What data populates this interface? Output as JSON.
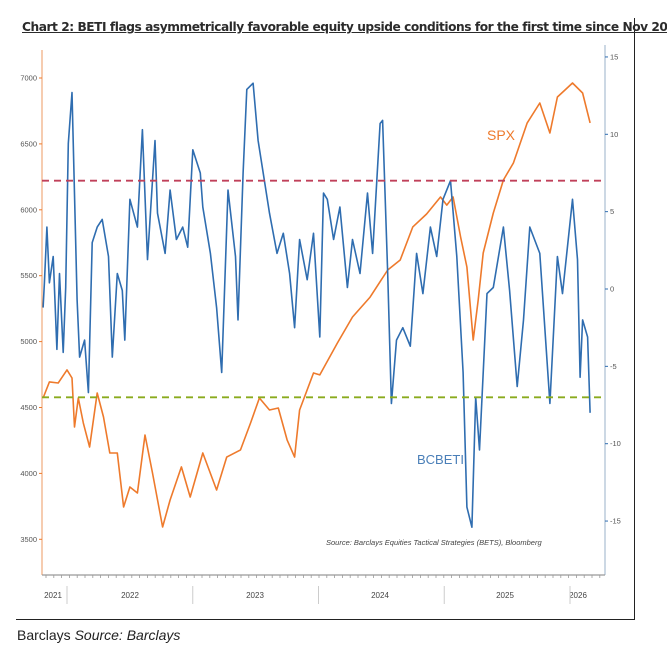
{
  "chart_data": {
    "type": "line",
    "title": "Chart 2: BETI flags asymmetrically favorable equity upside conditions for the first time since Nov 20",
    "source_note": "Source: Barclays Equities Tactical Strategies (BETS), Bloomberg",
    "x_tick_labels": [
      "2021",
      "2022",
      "2023",
      "2024",
      "2025",
      "2026"
    ],
    "xlim": [
      2021.8,
      2026.2
    ],
    "left_axis": {
      "ylim": [
        3300,
        7250
      ],
      "ticks": [
        3500,
        4000,
        4500,
        5000,
        5500,
        6000,
        6500,
        7000
      ],
      "series": "SPX"
    },
    "right_axis": {
      "ylim": [
        -18,
        17
      ],
      "ticks": [
        -15,
        -10,
        -5,
        0,
        5,
        10,
        15
      ],
      "series": "BCBETI"
    },
    "thresholds": [
      {
        "axis": "right",
        "value": 7,
        "color": "#c0405a",
        "style": "dashed"
      },
      {
        "axis": "right",
        "value": -7,
        "color": "#8aab1e",
        "style": "dashed"
      }
    ],
    "series": [
      {
        "name": "SPX",
        "label": "SPX",
        "axis": "left",
        "color": "#ee7a2c",
        "x": [
          2021.81,
          2021.86,
          2021.93,
          2022.0,
          2022.04,
          2022.06,
          2022.09,
          2022.13,
          2022.18,
          2022.24,
          2022.29,
          2022.34,
          2022.4,
          2022.45,
          2022.5,
          2022.56,
          2022.62,
          2022.68,
          2022.76,
          2022.82,
          2022.91,
          2022.98,
          2023.08,
          2023.19,
          2023.27,
          2023.38,
          2023.46,
          2023.53,
          2023.61,
          2023.68,
          2023.75,
          2023.81,
          2023.85,
          2023.96,
          2024.01,
          2024.15,
          2024.27,
          2024.41,
          2024.55,
          2024.65,
          2024.75,
          2024.86,
          2024.97,
          2025.02,
          2025.07,
          2025.13,
          2025.18,
          2025.23,
          2025.27,
          2025.31,
          2025.39,
          2025.47,
          2025.55,
          2025.66,
          2025.76,
          2025.84,
          2025.9,
          2025.96,
          2026.02,
          2026.1,
          2026.16
        ],
        "values": [
          4572,
          4694,
          4686,
          4785,
          4724,
          4352,
          4572,
          4383,
          4200,
          4610,
          4428,
          4155,
          4155,
          3745,
          3897,
          3851,
          4291,
          4003,
          3593,
          3798,
          4049,
          3821,
          4155,
          3874,
          4124,
          4178,
          4383,
          4572,
          4481,
          4496,
          4254,
          4124,
          4481,
          4762,
          4747,
          4989,
          5187,
          5338,
          5543,
          5619,
          5870,
          5968,
          6097,
          6036,
          6097,
          5794,
          5566,
          5012,
          5316,
          5672,
          5976,
          6226,
          6355,
          6659,
          6810,
          6583,
          6856,
          6909,
          6962,
          6886,
          6659
        ]
      },
      {
        "name": "BCBETI",
        "label": "BCBETI",
        "axis": "right",
        "color": "#2f6db0",
        "x": [
          2021.81,
          2021.82,
          2021.84,
          2021.86,
          2021.89,
          2021.92,
          2021.94,
          2021.97,
          2021.99,
          2022.01,
          2022.04,
          2022.08,
          2022.1,
          2022.14,
          2022.17,
          2022.2,
          2022.24,
          2022.28,
          2022.33,
          2022.36,
          2022.4,
          2022.44,
          2022.46,
          2022.5,
          2022.56,
          2022.6,
          2022.64,
          2022.7,
          2022.72,
          2022.78,
          2022.82,
          2022.87,
          2022.92,
          2022.96,
          2023.0,
          2023.06,
          2023.08,
          2023.14,
          2023.19,
          2023.23,
          2023.28,
          2023.34,
          2023.36,
          2023.4,
          2023.43,
          2023.48,
          2023.52,
          2023.56,
          2023.61,
          2023.67,
          2023.72,
          2023.77,
          2023.81,
          2023.85,
          2023.91,
          2023.96,
          2024.01,
          2024.04,
          2024.07,
          2024.12,
          2024.17,
          2024.23,
          2024.27,
          2024.33,
          2024.39,
          2024.43,
          2024.49,
          2024.51,
          2024.55,
          2024.58,
          2024.62,
          2024.67,
          2024.73,
          2024.78,
          2024.83,
          2024.89,
          2024.94,
          2024.99,
          2025.05,
          2025.1,
          2025.15,
          2025.18,
          2025.22,
          2025.25,
          2025.28,
          2025.34,
          2025.39,
          2025.47,
          2025.52,
          2025.58,
          2025.63,
          2025.68,
          2025.76,
          2025.84,
          2025.9,
          2025.94,
          2026.02,
          2026.06,
          2026.08,
          2026.1,
          2026.14,
          2026.16
        ],
        "values": [
          -1.2,
          0.4,
          4.0,
          0.4,
          2.1,
          -3.9,
          1.0,
          -4.1,
          0.1,
          9.4,
          12.7,
          -0.7,
          -4.4,
          -3.3,
          -6.7,
          3.0,
          4.0,
          4.5,
          2.1,
          -4.4,
          1.0,
          -0.1,
          -3.3,
          5.8,
          4.0,
          10.3,
          1.9,
          9.6,
          4.9,
          2.3,
          6.4,
          3.2,
          4.0,
          2.7,
          9.0,
          7.5,
          5.3,
          2.3,
          -1.2,
          -5.4,
          6.4,
          2.1,
          -2.0,
          7.5,
          12.9,
          13.3,
          9.6,
          7.5,
          4.9,
          2.3,
          3.6,
          1.0,
          -2.5,
          3.2,
          0.6,
          3.6,
          -3.1,
          6.2,
          5.8,
          3.2,
          5.3,
          0.1,
          3.2,
          1.0,
          6.2,
          2.3,
          10.7,
          10.9,
          1.0,
          -7.4,
          -3.3,
          -2.5,
          -3.7,
          2.3,
          -0.3,
          4.0,
          2.1,
          5.8,
          7.0,
          2.1,
          -5.4,
          -14.1,
          -15.4,
          -7.0,
          -10.4,
          -0.3,
          0.1,
          4.0,
          -0.1,
          -6.3,
          -2.0,
          4.0,
          2.3,
          -7.4,
          2.1,
          -0.3,
          5.8,
          1.9,
          -5.7,
          -2.0,
          -3.1,
          -8.0
        ]
      }
    ]
  },
  "caption": {
    "prefix": "Barclays",
    "source": "Source: Barclays"
  }
}
